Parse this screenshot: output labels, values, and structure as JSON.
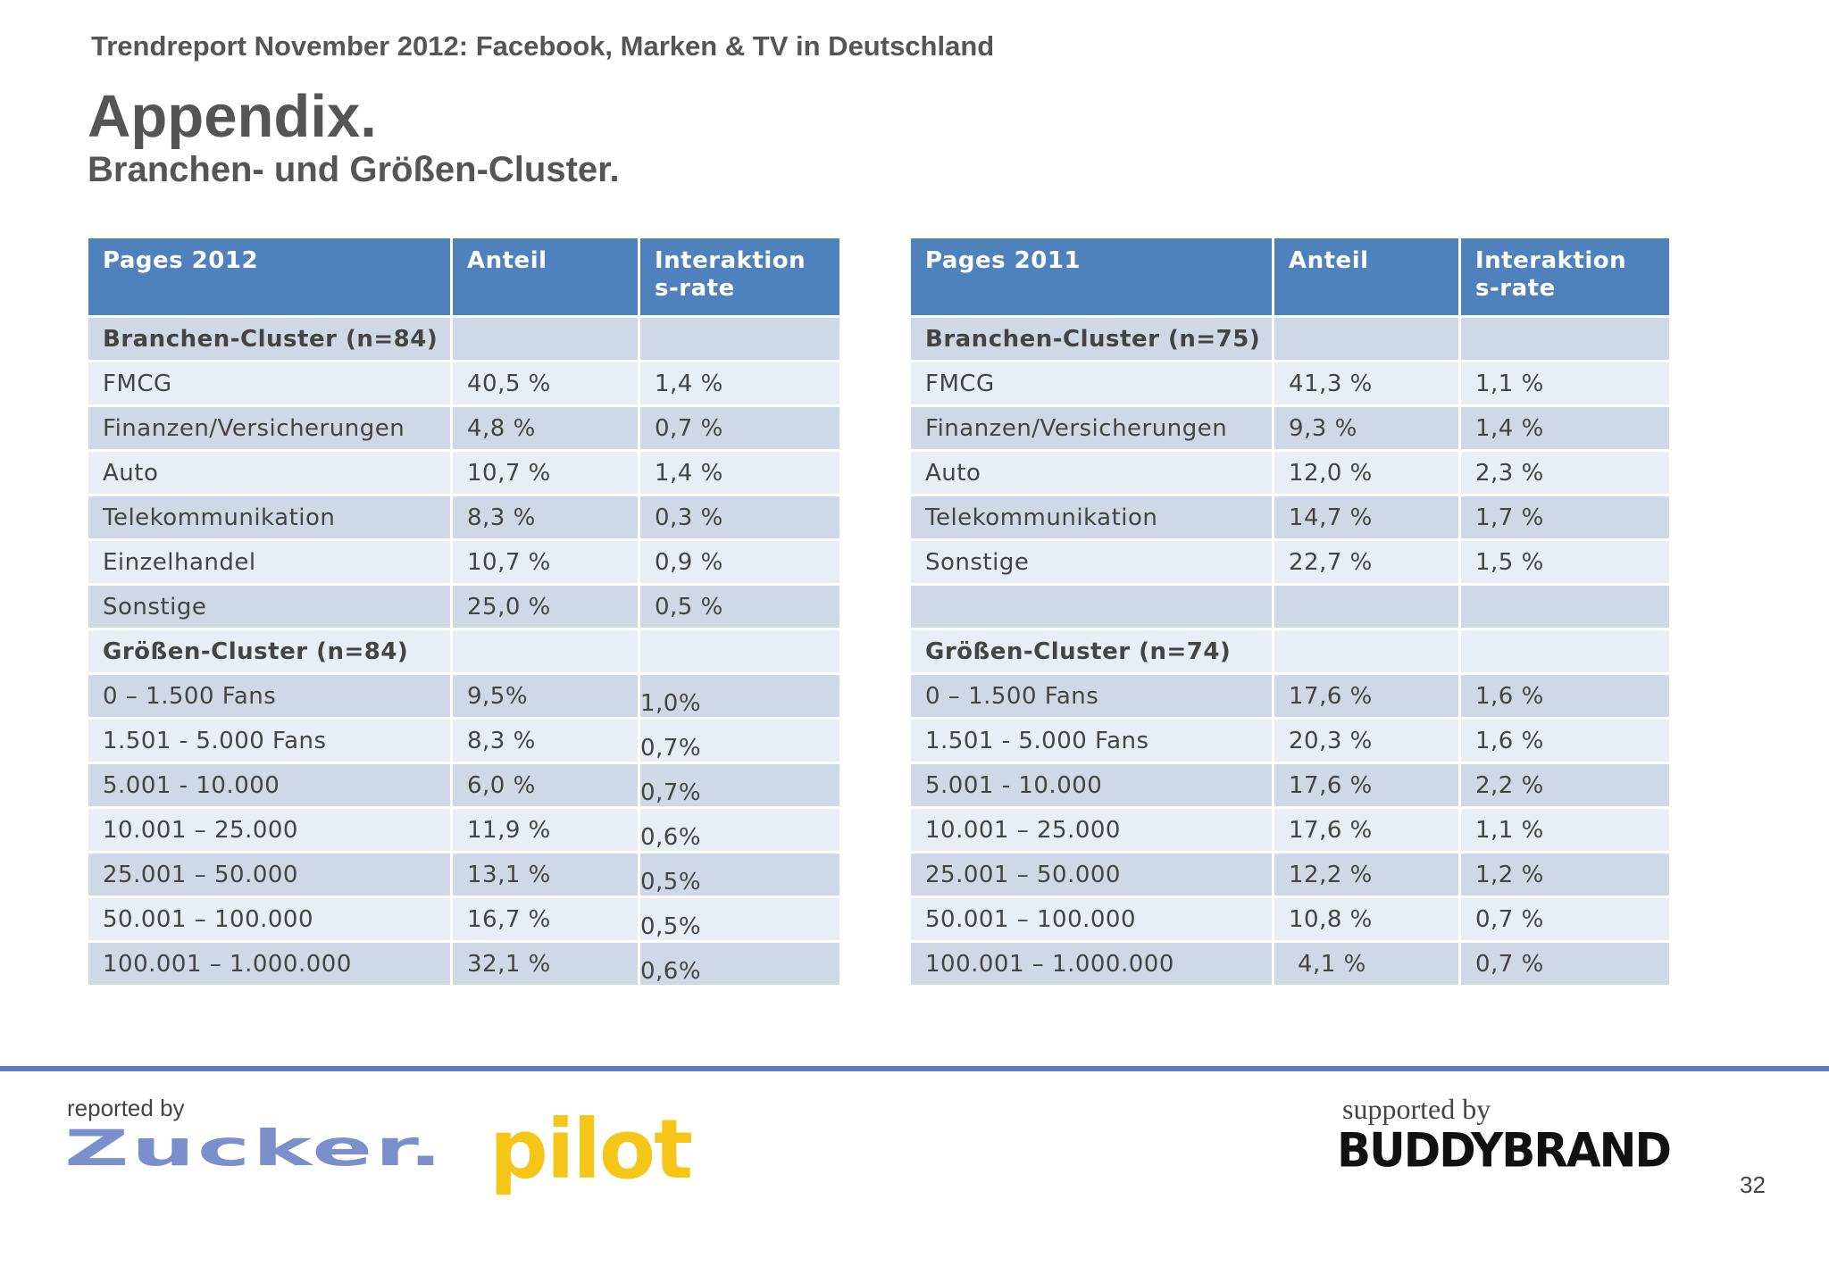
{
  "header": {
    "title": "Trendreport November 2012: Facebook, Marken & TV in Deutschland"
  },
  "page": {
    "title": "Appendix.",
    "subtitle": "Branchen- und Größen-Cluster.",
    "number": "32"
  },
  "table_2012": {
    "headers": [
      "Pages 2012",
      "Anteil",
      "Interaktions-rate"
    ],
    "rows": [
      [
        "Branchen-Cluster (n=84)",
        "",
        ""
      ],
      [
        "FMCG",
        "40,5 %",
        "1,4 %"
      ],
      [
        "Finanzen/Versicherungen",
        "4,8 %",
        "0,7 %"
      ],
      [
        "Auto",
        "10,7 %",
        "1,4 %"
      ],
      [
        "Telekommunikation",
        "8,3 %",
        "0,3 %"
      ],
      [
        "Einzelhandel",
        "10,7 %",
        "0,9 %"
      ],
      [
        "Sonstige",
        "25,0 %",
        "0,5 %"
      ],
      [
        "Größen-Cluster (n=84)",
        "",
        ""
      ],
      [
        "0 – 1.500 Fans",
        "9,5%",
        "1,0%"
      ],
      [
        "1.501 - 5.000 Fans",
        "8,3 %",
        "0,7%"
      ],
      [
        "5.001 - 10.000",
        "6,0 %",
        "0,7%"
      ],
      [
        "10.001 – 25.000",
        "11,9 %",
        "0,6%"
      ],
      [
        "25.001 – 50.000",
        "13,1 %",
        "0,5%"
      ],
      [
        "50.001 – 100.000",
        "16,7 %",
        "0,5%"
      ],
      [
        "100.001 – 1.000.000",
        "32,1 %",
        "0,6%"
      ]
    ]
  },
  "table_2011": {
    "headers": [
      "Pages 2011",
      "Anteil",
      "Interaktions-rate"
    ],
    "rows": [
      [
        "Branchen-Cluster (n=75)",
        "",
        ""
      ],
      [
        "FMCG",
        "41,3 %",
        "1,1 %"
      ],
      [
        "Finanzen/Versicherungen",
        "9,3 %",
        "1,4 %"
      ],
      [
        "Auto",
        "12,0 %",
        "2,3 %"
      ],
      [
        "Telekommunikation",
        "14,7 %",
        "1,7 %"
      ],
      [
        "Sonstige",
        "22,7 %",
        "1,5 %"
      ],
      [
        "",
        "",
        ""
      ],
      [
        "Größen-Cluster (n=74)",
        "",
        ""
      ],
      [
        "0 – 1.500 Fans",
        "17,6 %",
        "1,6 %"
      ],
      [
        "1.501 - 5.000 Fans",
        "20,3 %",
        "1,6 %"
      ],
      [
        "5.001 - 10.000",
        "17,6 %",
        "2,2 %"
      ],
      [
        "10.001 – 25.000",
        "17,6 %",
        "1,1 %"
      ],
      [
        "25.001 – 50.000",
        "12,2 %",
        "1,2 %"
      ],
      [
        "50.001 – 100.000",
        "10,8 %",
        "0,7 %"
      ],
      [
        "100.001 – 1.000.000",
        "4,1 %",
        "0,7 %"
      ]
    ]
  },
  "footer": {
    "reported_by": "reported by",
    "logo_zucker": "Zucker.",
    "logo_pilot": "pilot",
    "supported_by": "supported by",
    "logo_buddybrand": "BUDDYBRAND"
  }
}
